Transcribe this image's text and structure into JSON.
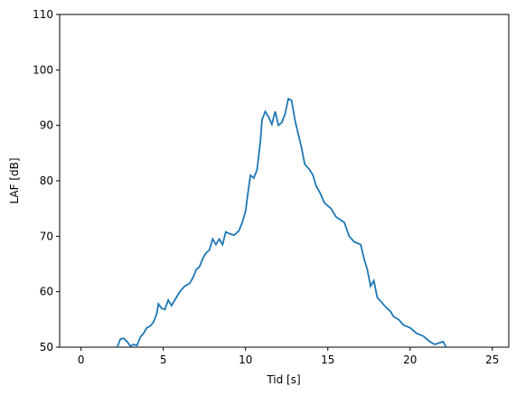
{
  "chart_data": {
    "type": "line",
    "xlabel": "Tid [s]",
    "ylabel": "LAF [dB]",
    "x": [
      2.2,
      2.4,
      2.6,
      2.8,
      3.0,
      3.2,
      3.4,
      3.6,
      3.8,
      4.0,
      4.2,
      4.4,
      4.6,
      4.7,
      4.9,
      5.1,
      5.3,
      5.5,
      5.7,
      6.0,
      6.3,
      6.6,
      6.8,
      7.0,
      7.2,
      7.4,
      7.6,
      7.8,
      8.0,
      8.2,
      8.4,
      8.6,
      8.8,
      9.0,
      9.3,
      9.6,
      9.8,
      10.0,
      10.2,
      10.3,
      10.5,
      10.7,
      10.9,
      11.0,
      11.2,
      11.4,
      11.6,
      11.8,
      12.0,
      12.2,
      12.4,
      12.6,
      12.8,
      13.0,
      13.2,
      13.4,
      13.6,
      13.9,
      14.1,
      14.3,
      14.5,
      14.8,
      15.2,
      15.5,
      16.0,
      16.3,
      16.6,
      17.0,
      17.2,
      17.4,
      17.6,
      17.8,
      18.0,
      18.3,
      18.6,
      18.8,
      19.0,
      19.3,
      19.6,
      20.0,
      20.4,
      20.8,
      21.2,
      21.5,
      21.8,
      22.0,
      22.2
    ],
    "series": [
      {
        "name": "LAF",
        "color": "#1f77b4",
        "values": [
          50,
          51.5,
          51.6,
          51,
          50.2,
          50.5,
          50.3,
          51.8,
          52.5,
          53.5,
          53.8,
          54.5,
          56,
          57.8,
          57,
          56.8,
          58.5,
          57.5,
          58.5,
          60,
          61,
          61.5,
          62.5,
          64,
          64.5,
          66,
          67,
          67.5,
          69.5,
          68.5,
          69.5,
          68.5,
          70.8,
          70.5,
          70.2,
          71,
          72.5,
          74.5,
          79,
          81,
          80.5,
          82,
          87,
          91,
          92.5,
          91.5,
          90.2,
          92.5,
          90,
          90.5,
          92,
          94.8,
          94.5,
          91,
          88.5,
          86,
          83,
          82,
          81,
          79,
          78,
          76,
          75,
          73.5,
          72.5,
          70,
          69,
          68.5,
          66,
          64,
          61,
          62,
          59,
          58,
          57,
          56.5,
          55.5,
          55,
          54,
          53.5,
          52.5,
          52,
          51,
          50.5,
          50.8,
          51,
          50
        ]
      }
    ],
    "xlim": [
      -1.3,
      26.0
    ],
    "xticks": [
      0,
      5,
      10,
      15,
      20,
      25
    ],
    "ylim": [
      50,
      110
    ],
    "yticks": [
      50,
      60,
      70,
      80,
      90,
      100,
      110
    ]
  }
}
